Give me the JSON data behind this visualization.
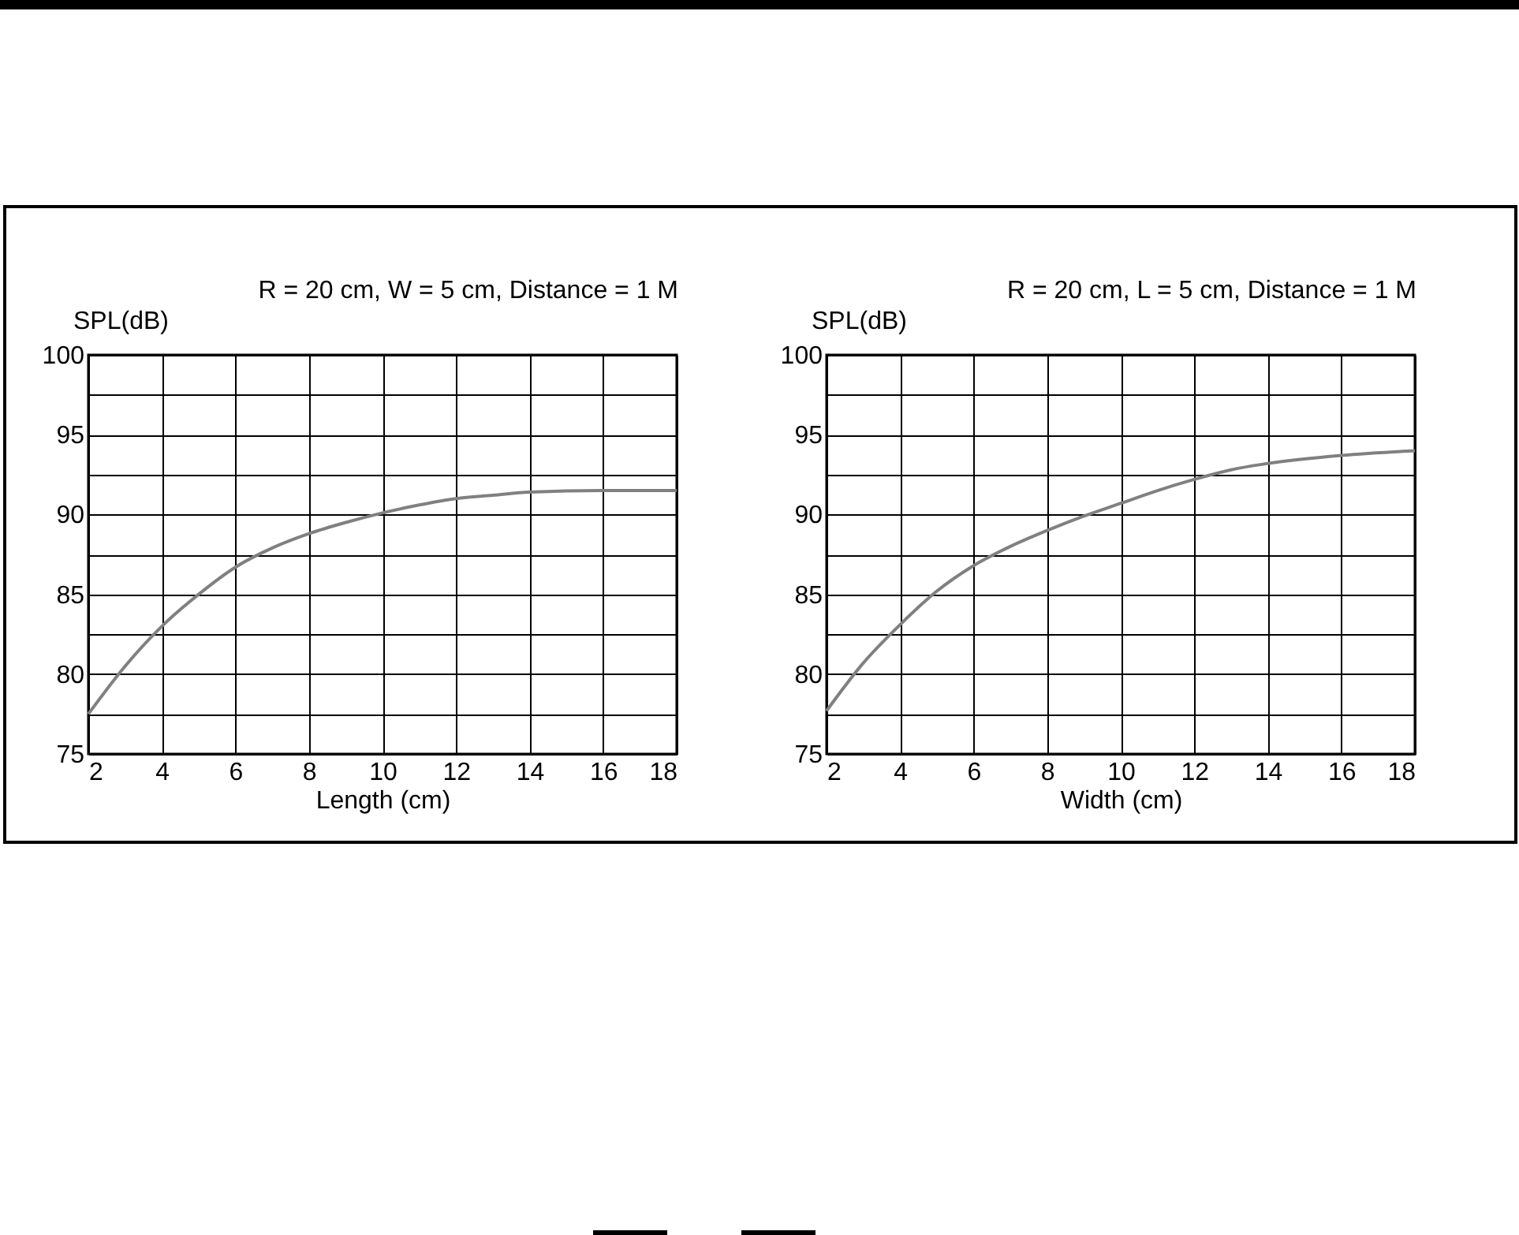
{
  "chart_data": [
    {
      "type": "line",
      "title": "R = 20 cm, W = 5 cm, Distance = 1 M",
      "ylabel": "SPL(dB)",
      "xlabel": "Length (cm)",
      "x": [
        2,
        3,
        4,
        5,
        6,
        7,
        8,
        9,
        10,
        11,
        12,
        13,
        14,
        16,
        18
      ],
      "series": [
        {
          "color": "#808080",
          "values": [
            77.5,
            80.5,
            83.0,
            85.0,
            86.7,
            87.9,
            88.8,
            89.5,
            90.1,
            90.6,
            91.0,
            91.2,
            91.4,
            91.5,
            91.5
          ]
        }
      ],
      "xlim": [
        2,
        18
      ],
      "xticks": [
        2,
        4,
        6,
        8,
        10,
        12,
        14,
        16,
        18
      ],
      "ylim": [
        75,
        100
      ],
      "yticks": [
        75,
        {
          "value": 77.5,
          "label": null
        },
        80,
        {
          "value": 82.5,
          "label": null
        },
        85,
        {
          "value": 87.5,
          "label": null
        },
        90,
        {
          "value": 92.5,
          "label": null
        },
        95,
        {
          "value": 97.5,
          "label": null
        },
        100
      ],
      "grid": true
    },
    {
      "type": "line",
      "title": "R = 20 cm, L = 5 cm, Distance = 1 M",
      "ylabel": "SPL(dB)",
      "xlabel": "Width (cm)",
      "x": [
        2,
        3,
        4,
        5,
        6,
        7,
        8,
        9,
        10,
        11,
        12,
        13,
        14,
        16,
        18
      ],
      "series": [
        {
          "color": "#808080",
          "values": [
            77.7,
            80.7,
            83.1,
            85.2,
            86.8,
            88.0,
            89.0,
            89.9,
            90.7,
            91.5,
            92.2,
            92.8,
            93.2,
            93.7,
            94.0
          ]
        }
      ],
      "xlim": [
        2,
        18
      ],
      "xticks": [
        2,
        4,
        6,
        8,
        10,
        12,
        14,
        16,
        18
      ],
      "ylim": [
        75,
        100
      ],
      "yticks": [
        75,
        {
          "value": 77.5,
          "label": null
        },
        80,
        {
          "value": 82.5,
          "label": null
        },
        85,
        {
          "value": 87.5,
          "label": null
        },
        90,
        {
          "value": 92.5,
          "label": null
        },
        95,
        {
          "value": 97.5,
          "label": null
        },
        100
      ],
      "grid": true
    }
  ]
}
